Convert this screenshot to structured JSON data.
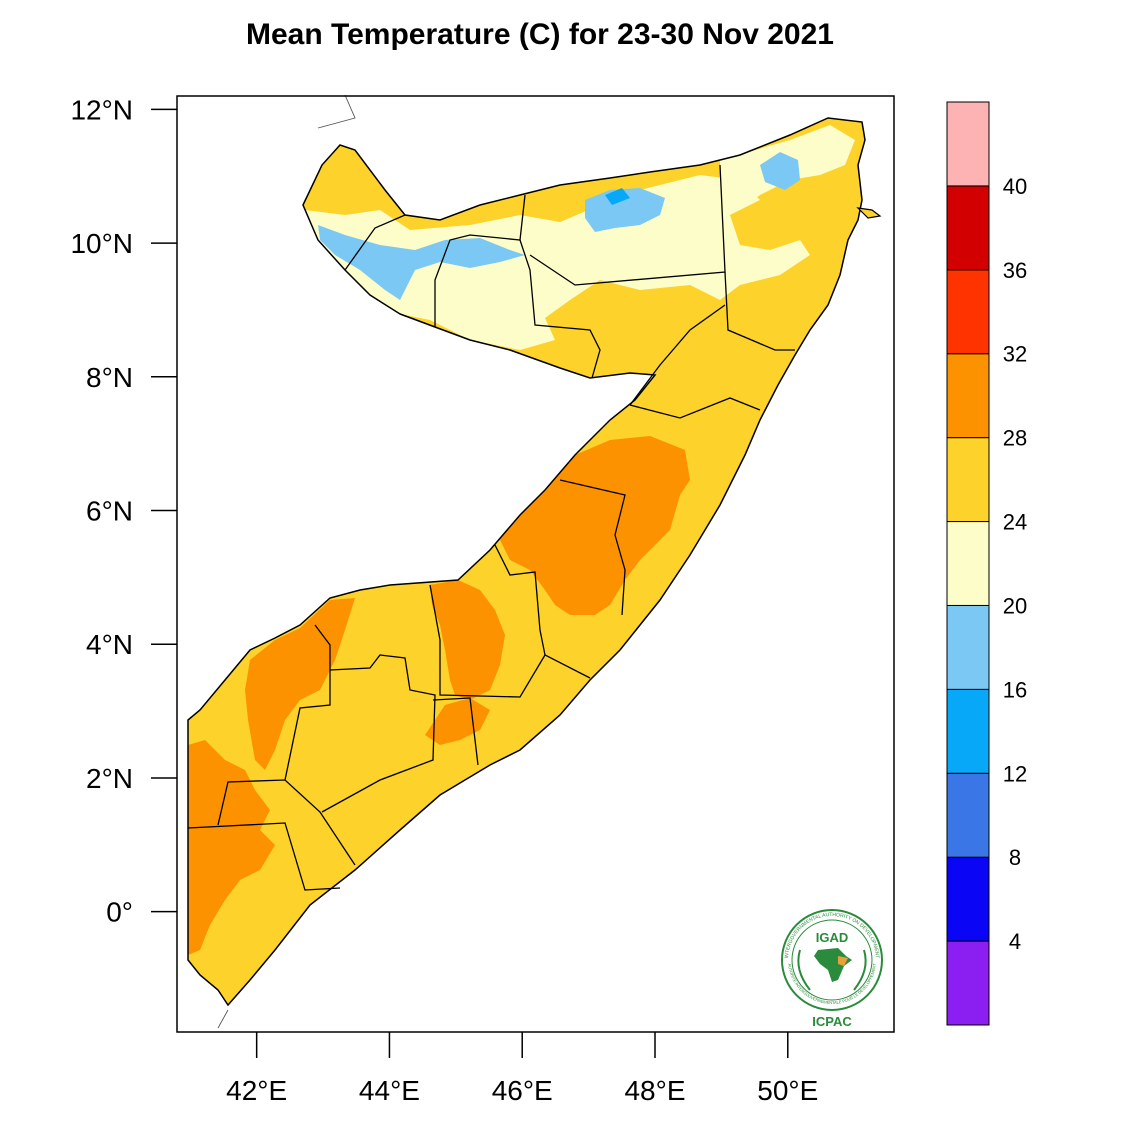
{
  "title": "Mean Temperature (C) for 23-30 Nov 2021",
  "map": {
    "lon_range": [
      40.8,
      51.6
    ],
    "lat_range": [
      -1.8,
      12.2
    ],
    "lat_ticks": [
      {
        "value": 12,
        "label": "12°N"
      },
      {
        "value": 10,
        "label": "10°N"
      },
      {
        "value": 8,
        "label": "8°N"
      },
      {
        "value": 6,
        "label": "6°N"
      },
      {
        "value": 4,
        "label": "4°N"
      },
      {
        "value": 2,
        "label": "2°N"
      },
      {
        "value": 0,
        "label": "0°"
      }
    ],
    "lon_ticks": [
      {
        "value": 42,
        "label": "42°E"
      },
      {
        "value": 44,
        "label": "44°E"
      },
      {
        "value": 46,
        "label": "46°E"
      },
      {
        "value": 48,
        "label": "48°E"
      },
      {
        "value": 50,
        "label": "50°E"
      }
    ]
  },
  "colorbar": {
    "bins": [
      {
        "color": "#8b1ef0"
      },
      {
        "color": "#0a06f5"
      },
      {
        "color": "#3a76e6"
      },
      {
        "color": "#06a8f7"
      },
      {
        "color": "#7bc8f5"
      },
      {
        "color": "#fdfdc9"
      },
      {
        "color": "#fcd22b"
      },
      {
        "color": "#fd9200"
      },
      {
        "color": "#fe3300"
      },
      {
        "color": "#d20000"
      },
      {
        "color": "#fdb3b3"
      }
    ],
    "labels": [
      "4",
      "8",
      "12",
      "16",
      "20",
      "24",
      "28",
      "32",
      "36",
      "40"
    ]
  },
  "logo": {
    "arc_text": "INTERGOVERNMENTAL AUTHORITY ON DEVELOPMENT",
    "arc_text_bottom": "AUTORITE INTERGOUVERNEMENTALE POUR LE DEVELOPPEMENT",
    "center": "IGAD",
    "bottom": "ICPAC"
  }
}
